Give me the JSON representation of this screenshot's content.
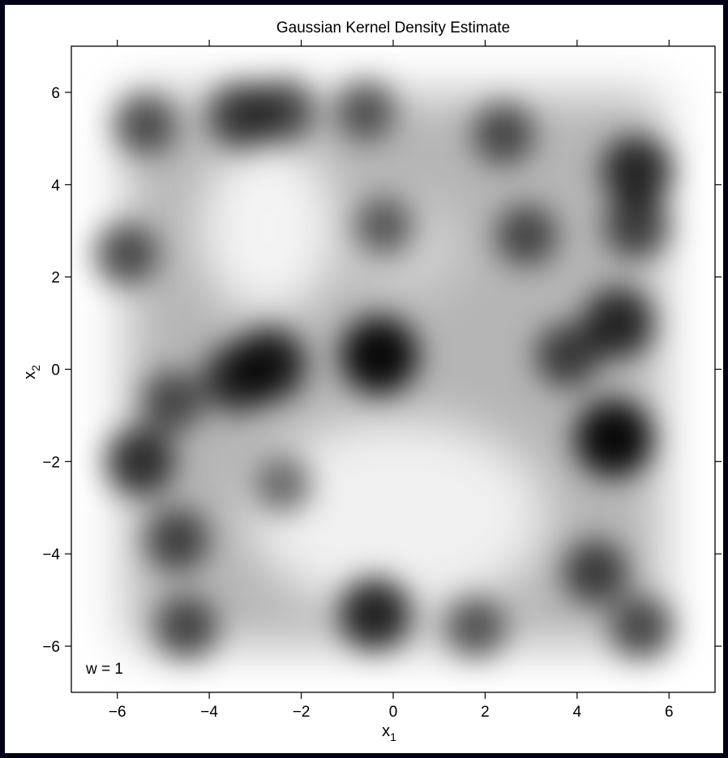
{
  "chart_data": {
    "type": "heatmap",
    "title": "Gaussian Kernel Density Estimate",
    "xlabel": "x",
    "xlabel_subscript": "1",
    "ylabel": "x",
    "ylabel_subscript": "2",
    "annotation": "w = 1",
    "xlim": [
      -7.0,
      7.0
    ],
    "ylim": [
      -7.0,
      7.0
    ],
    "x_ticks": [
      -6,
      -4,
      -2,
      0,
      2,
      4,
      6
    ],
    "y_ticks": [
      -6,
      -4,
      -2,
      0,
      2,
      4,
      6
    ],
    "x_tick_labels": [
      "−6",
      "−4",
      "−2",
      "0",
      "2",
      "4",
      "6"
    ],
    "y_tick_labels": [
      "−6",
      "−4",
      "−2",
      "0",
      "2",
      "4",
      "6"
    ],
    "colormap": "grayscale (white = low density, black = high density)",
    "grid": false,
    "density_hotspots": [
      {
        "x": -0.3,
        "y": 0.3,
        "strength": 1.0
      },
      {
        "x": 4.8,
        "y": -1.5,
        "strength": 1.0
      },
      {
        "x": -2.7,
        "y": 0.1,
        "strength": 0.85
      },
      {
        "x": -3.4,
        "y": -0.2,
        "strength": 0.7
      },
      {
        "x": -0.4,
        "y": -5.3,
        "strength": 0.8
      },
      {
        "x": 5.3,
        "y": 4.3,
        "strength": 0.75
      },
      {
        "x": 4.9,
        "y": 1.0,
        "strength": 0.75
      },
      {
        "x": -3.3,
        "y": 5.5,
        "strength": 0.6
      },
      {
        "x": -5.5,
        "y": -2.0,
        "strength": 0.7
      },
      {
        "x": -2.4,
        "y": 5.6,
        "strength": 0.5
      },
      {
        "x": 3.8,
        "y": 0.3,
        "strength": 0.55
      },
      {
        "x": 5.3,
        "y": 3.1,
        "strength": 0.55
      },
      {
        "x": 2.9,
        "y": 2.9,
        "strength": 0.45
      },
      {
        "x": 4.4,
        "y": -4.4,
        "strength": 0.55
      },
      {
        "x": 5.4,
        "y": -5.6,
        "strength": 0.5
      },
      {
        "x": -4.5,
        "y": -5.6,
        "strength": 0.5
      },
      {
        "x": -4.7,
        "y": -3.7,
        "strength": 0.5
      },
      {
        "x": -5.8,
        "y": 2.5,
        "strength": 0.5
      },
      {
        "x": -5.4,
        "y": 5.3,
        "strength": 0.45
      },
      {
        "x": -4.8,
        "y": -0.7,
        "strength": 0.45
      },
      {
        "x": 1.8,
        "y": -5.6,
        "strength": 0.4
      },
      {
        "x": 2.4,
        "y": 5.1,
        "strength": 0.45
      },
      {
        "x": -0.6,
        "y": 5.6,
        "strength": 0.4
      },
      {
        "x": -0.2,
        "y": 3.1,
        "strength": 0.35
      },
      {
        "x": -2.4,
        "y": -2.5,
        "strength": 0.3
      }
    ]
  }
}
